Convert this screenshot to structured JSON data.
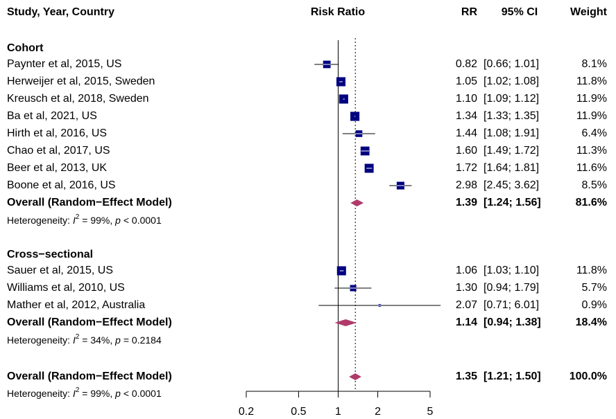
{
  "chart_data": {
    "type": "forest",
    "columns": {
      "study": "Study, Year, Country",
      "plot": "Risk Ratio",
      "rr": "RR",
      "ci": "95% CI",
      "weight": "Weight"
    },
    "groups": [
      {
        "name": "Cohort",
        "studies": [
          {
            "label": "Paynter et al, 2015, US",
            "rr": 0.82,
            "rr_label": "0.82",
            "lower": 0.66,
            "upper": 1.01,
            "ci_label": "[0.66; 1.01]",
            "weight": 8.1,
            "weight_label": "8.1%"
          },
          {
            "label": "Herweijer et al, 2015, Sweden",
            "rr": 1.05,
            "rr_label": "1.05",
            "lower": 1.02,
            "upper": 1.08,
            "ci_label": "[1.02; 1.08]",
            "weight": 11.8,
            "weight_label": "11.8%"
          },
          {
            "label": "Kreusch et al, 2018, Sweden",
            "rr": 1.1,
            "rr_label": "1.10",
            "lower": 1.09,
            "upper": 1.12,
            "ci_label": "[1.09; 1.12]",
            "weight": 11.9,
            "weight_label": "11.9%"
          },
          {
            "label": "Ba et al, 2021, US",
            "rr": 1.34,
            "rr_label": "1.34",
            "lower": 1.33,
            "upper": 1.35,
            "ci_label": "[1.33; 1.35]",
            "weight": 11.9,
            "weight_label": "11.9%"
          },
          {
            "label": "Hirth et al, 2016, US",
            "rr": 1.44,
            "rr_label": "1.44",
            "lower": 1.08,
            "upper": 1.91,
            "ci_label": "[1.08; 1.91]",
            "weight": 6.4,
            "weight_label": "6.4%"
          },
          {
            "label": "Chao et al, 2017, US",
            "rr": 1.6,
            "rr_label": "1.60",
            "lower": 1.49,
            "upper": 1.72,
            "ci_label": "[1.49; 1.72]",
            "weight": 11.3,
            "weight_label": "11.3%"
          },
          {
            "label": "Beer et al, 2013, UK",
            "rr": 1.72,
            "rr_label": "1.72",
            "lower": 1.64,
            "upper": 1.81,
            "ci_label": "[1.64; 1.81]",
            "weight": 11.6,
            "weight_label": "11.6%"
          },
          {
            "label": "Boone et al, 2016, US",
            "rr": 2.98,
            "rr_label": "2.98",
            "lower": 2.45,
            "upper": 3.62,
            "ci_label": "[2.45; 3.62]",
            "weight": 8.5,
            "weight_label": "8.5%"
          }
        ],
        "overall": {
          "label": "Overall (Random−Effect Model)",
          "rr": 1.39,
          "rr_label": "1.39",
          "lower": 1.24,
          "upper": 1.56,
          "ci_label": "[1.24; 1.56]",
          "weight": 81.6,
          "weight_label": "81.6%"
        },
        "heterogeneity": {
          "prefix": "Heterogeneity: ",
          "stat": "I",
          "power": "2",
          "stat_value": " = 99%, ",
          "p": "p",
          "p_value": " < 0.0001"
        }
      },
      {
        "name": "Cross−sectional",
        "studies": [
          {
            "label": "Sauer et al, 2015, US",
            "rr": 1.06,
            "rr_label": "1.06",
            "lower": 1.03,
            "upper": 1.1,
            "ci_label": "[1.03; 1.10]",
            "weight": 11.8,
            "weight_label": "11.8%"
          },
          {
            "label": "Williams et al, 2010, US",
            "rr": 1.3,
            "rr_label": "1.30",
            "lower": 0.94,
            "upper": 1.79,
            "ci_label": "[0.94; 1.79]",
            "weight": 5.7,
            "weight_label": "5.7%"
          },
          {
            "label": "Mather et al, 2012, Australia",
            "rr": 2.07,
            "rr_label": "2.07",
            "lower": 0.71,
            "upper": 6.01,
            "ci_label": "[0.71; 6.01]",
            "weight": 0.9,
            "weight_label": "0.9%"
          }
        ],
        "overall": {
          "label": "Overall (Random−Effect Model)",
          "rr": 1.14,
          "rr_label": "1.14",
          "lower": 0.94,
          "upper": 1.38,
          "ci_label": "[0.94; 1.38]",
          "weight": 18.4,
          "weight_label": "18.4%"
        },
        "heterogeneity": {
          "prefix": "Heterogeneity: ",
          "stat": "I",
          "power": "2",
          "stat_value": " = 34%, ",
          "p": "p",
          "p_value": " = 0.2184"
        }
      }
    ],
    "overall": {
      "label": "Overall (Random−Effect Model)",
      "rr": 1.35,
      "rr_label": "1.35",
      "lower": 1.21,
      "upper": 1.5,
      "ci_label": "[1.21; 1.50]",
      "weight": 100.0,
      "weight_label": "100.0%"
    },
    "heterogeneity": {
      "prefix": "Heterogeneity: ",
      "stat": "I",
      "power": "2",
      "stat_value": " = 99%, ",
      "p": "p",
      "p_value": " < 0.0001"
    },
    "null_value": 1,
    "xlim": [
      0.2,
      5
    ],
    "xticks": [
      0.2,
      0.5,
      1,
      2,
      5
    ],
    "log_x": true,
    "square_color": "#000080",
    "diamond_color": "#b03a6a"
  }
}
